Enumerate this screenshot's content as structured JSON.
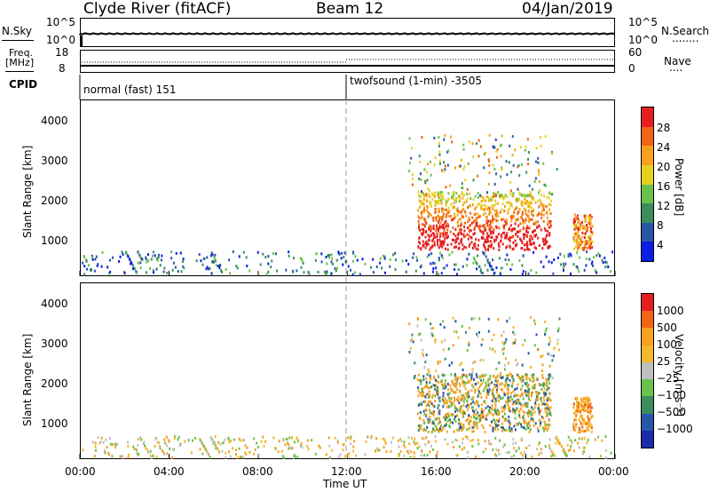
{
  "header": {
    "station": "Clyde River (fitACF)",
    "beam": "Beam 12",
    "date": "04/Jan/2019"
  },
  "noise_panel": {
    "left_label": "N.Sky",
    "left_tick_top": "10^5",
    "left_tick_bottom": "10^0",
    "right_tick_top": "10^5",
    "right_tick_bottom": "10^0",
    "right_label": "N.Search",
    "right_legend_line": "........"
  },
  "freq_panel": {
    "left_label_1": "Freq.",
    "left_label_2": "[MHz]",
    "left_tick_top": "18",
    "left_tick_bottom": "8",
    "right_tick_top": "60",
    "right_tick_bottom": "0",
    "right_label": "Nave",
    "right_legend_line": "...."
  },
  "cpid_panel": {
    "label": "CPID",
    "modes": [
      {
        "name": "normal (fast) 151",
        "start_hour": 0
      },
      {
        "name": "twofsound (1-min) -3505",
        "start_hour": 12
      }
    ]
  },
  "colors": {
    "power_scale": [
      "#0a1ee6",
      "#2857a8",
      "#3a8e5e",
      "#6ac24a",
      "#e6d21e",
      "#f5a01e",
      "#f06414",
      "#e61e1e"
    ],
    "velocity_scale": [
      "#e61e1e",
      "#f06414",
      "#f5a01e",
      "#f5b82a",
      "#bfbfbf",
      "#6ac24a",
      "#3a8e5e",
      "#2857a8",
      "#1a2aa8"
    ]
  },
  "chart_data": [
    {
      "type": "heatmap",
      "name": "power",
      "ylabel": "Slant Range [km]",
      "y_ticks": [
        "1000",
        "2000",
        "3000",
        "4000"
      ],
      "x_ticks": [
        "00:00",
        "04:00",
        "08:00",
        "12:00",
        "16:00",
        "20:00",
        "00:00"
      ],
      "colorbar_label": "Power [dB]",
      "colorbar_ticks": [
        "4",
        "8",
        "12",
        "16",
        "20",
        "24",
        "28"
      ],
      "xlim_hours": [
        0,
        24
      ],
      "ylim_km": [
        180,
        4600
      ]
    },
    {
      "type": "heatmap",
      "name": "velocity",
      "ylabel": "Slant Range [km]",
      "y_ticks": [
        "1000",
        "2000",
        "3000",
        "4000"
      ],
      "x_ticks": [
        "00:00",
        "04:00",
        "08:00",
        "12:00",
        "16:00",
        "20:00",
        "00:00"
      ],
      "xlabel": "Time UT",
      "colorbar_label": "Velocity [m s⁻¹]",
      "colorbar_ticks": [
        "1000",
        "500",
        "100",
        "25",
        "−25",
        "−100",
        "−500",
        "−1000"
      ],
      "xlim_hours": [
        0,
        24
      ],
      "ylim_km": [
        180,
        4600
      ]
    }
  ]
}
